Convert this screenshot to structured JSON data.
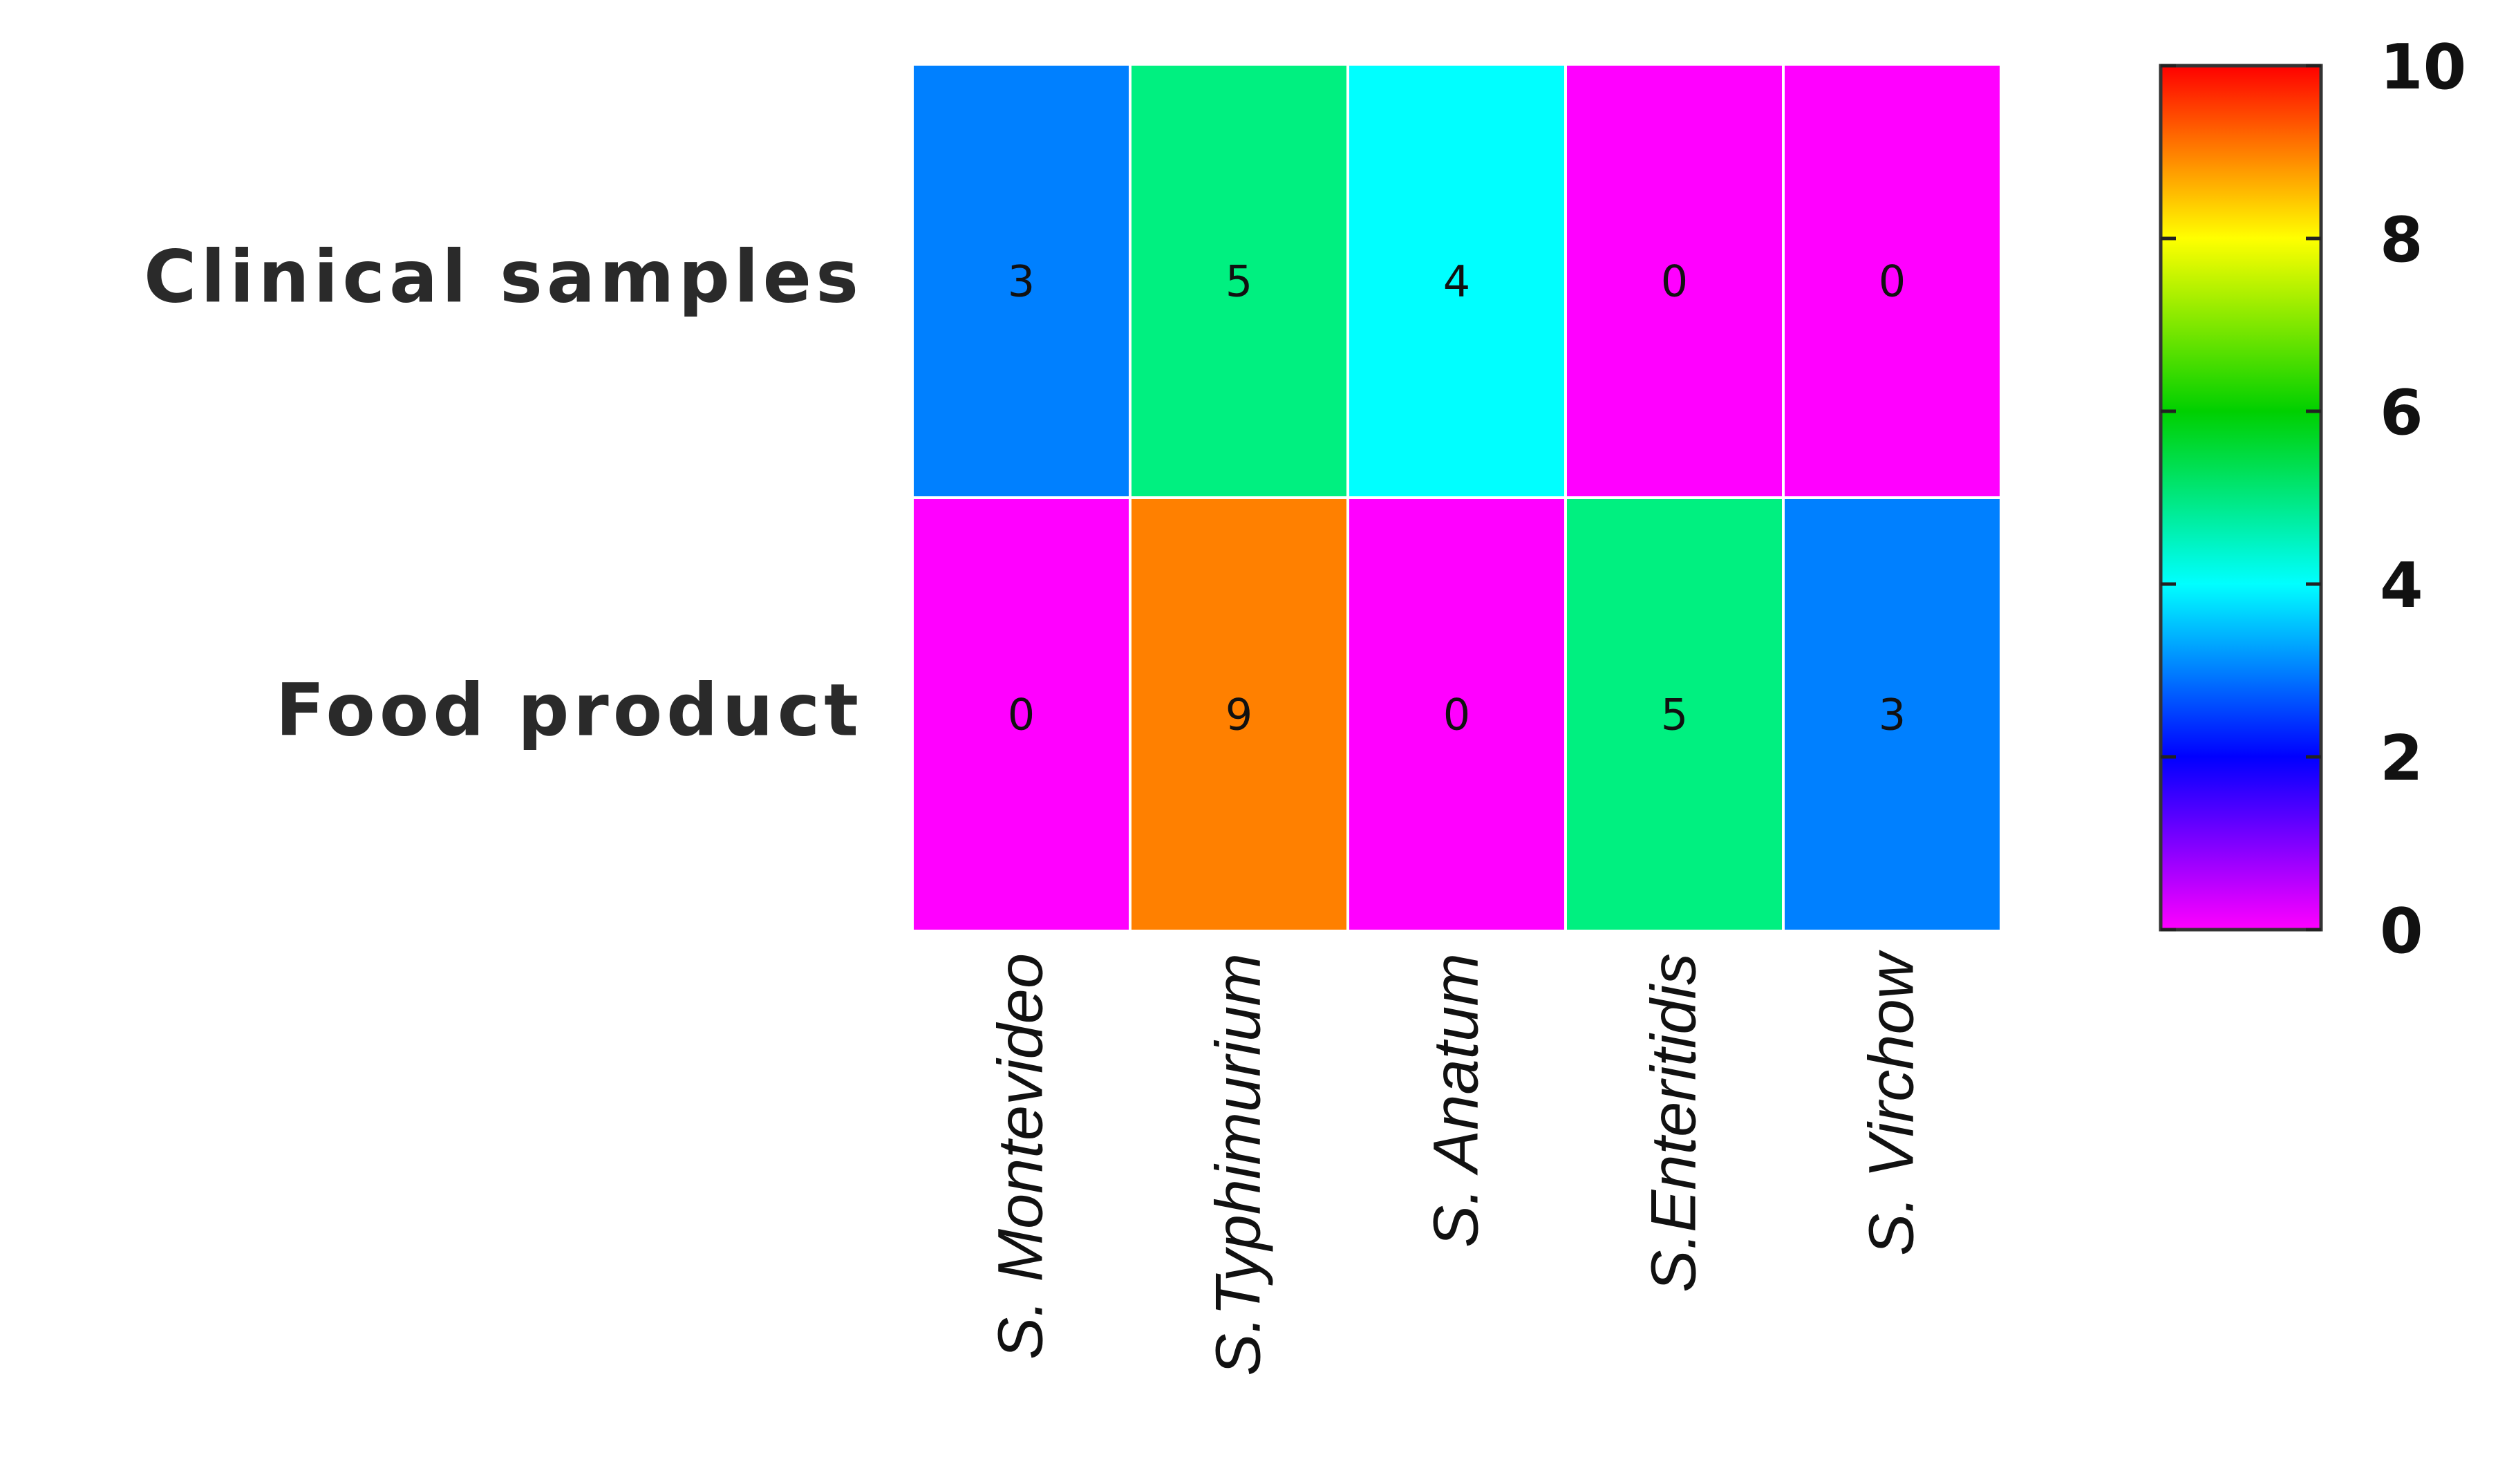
{
  "chart_data": {
    "type": "heatmap",
    "rows": [
      "Clinical samples",
      "Food product"
    ],
    "columns": [
      "S. Montevideo",
      "S.Typhimurium",
      "S.  Anatum",
      "S.Enteritidis",
      "S. Virchow"
    ],
    "values": [
      [
        3,
        5,
        4,
        0,
        0
      ],
      [
        0,
        9,
        0,
        5,
        3
      ]
    ],
    "colorbar": {
      "min": 0,
      "max": 10,
      "ticks": [
        0,
        2,
        4,
        6,
        8,
        10
      ],
      "colormap": "rainbow (magenta-blue-cyan-green-yellow-red)",
      "stops": [
        {
          "value": 0,
          "color": "#ff00ff"
        },
        {
          "value": 2,
          "color": "#0000ff"
        },
        {
          "value": 4,
          "color": "#00ffff"
        },
        {
          "value": 6,
          "color": "#00d000"
        },
        {
          "value": 8,
          "color": "#ffff00"
        },
        {
          "value": 10,
          "color": "#ff0000"
        }
      ]
    },
    "colors": {
      "Clinical samples": [
        "#0080ff",
        "#00f080",
        "#00ffff",
        "#ff00ff",
        "#ff00ff"
      ],
      "Food product": [
        "#ff00ff",
        "#ff8000",
        "#ff00ff",
        "#00f080",
        "#0080ff"
      ]
    },
    "legend_position": "right"
  }
}
